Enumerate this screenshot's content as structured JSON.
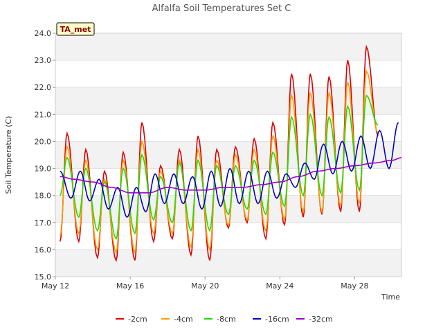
{
  "chart_data": {
    "type": "line",
    "title": "Alfalfa Soil Temperatures Set C",
    "xlabel": "Time",
    "ylabel": "Soil Temperature (C)",
    "badge": "TA_met",
    "ylim": [
      15.0,
      24.0
    ],
    "xlim": [
      "2024-05-12",
      "2024-05-30T12:00"
    ],
    "yticks": [
      "15.0",
      "16.0",
      "17.0",
      "18.0",
      "19.0",
      "20.0",
      "21.0",
      "22.0",
      "23.0",
      "24.0"
    ],
    "xticks": [
      {
        "label": "May 12",
        "date": "2024-05-12"
      },
      {
        "label": "May 16",
        "date": "2024-05-16"
      },
      {
        "label": "May 20",
        "date": "2024-05-20"
      },
      {
        "label": "May 24",
        "date": "2024-05-24"
      },
      {
        "label": "May 28",
        "date": "2024-05-28"
      }
    ],
    "grid": "horizontal alternating bands",
    "legend_position": "bottom",
    "series": [
      {
        "name": "-2cm",
        "color": "#dd0000",
        "x": [
          "2024-05-12T06:00",
          "2024-05-12T15:00",
          "2024-05-13T06:00",
          "2024-05-13T15:00",
          "2024-05-14T06:00",
          "2024-05-14T15:00",
          "2024-05-15T06:00",
          "2024-05-15T15:00",
          "2024-05-16T06:00",
          "2024-05-16T15:00",
          "2024-05-17T06:00",
          "2024-05-17T15:00",
          "2024-05-18T06:00",
          "2024-05-18T15:00",
          "2024-05-19T06:00",
          "2024-05-19T15:00",
          "2024-05-20T06:00",
          "2024-05-20T15:00",
          "2024-05-21T06:00",
          "2024-05-21T15:00",
          "2024-05-22T06:00",
          "2024-05-22T15:00",
          "2024-05-23T06:00",
          "2024-05-23T15:00",
          "2024-05-24T06:00",
          "2024-05-24T15:00",
          "2024-05-25T06:00",
          "2024-05-25T15:00",
          "2024-05-26T06:00",
          "2024-05-26T15:00",
          "2024-05-27T06:00",
          "2024-05-27T15:00",
          "2024-05-28T06:00",
          "2024-05-28T15:00",
          "2024-05-29T06:00",
          "2024-05-29T15:00",
          "2024-05-30T06:00"
        ],
        "y": [
          16.3,
          20.3,
          16.3,
          19.7,
          15.7,
          18.9,
          15.6,
          19.6,
          15.6,
          20.7,
          16.3,
          19.1,
          16.4,
          19.7,
          15.8,
          20.2,
          15.6,
          19.7,
          16.8,
          19.8,
          17.0,
          20.1,
          16.4,
          20.7,
          16.9,
          22.5,
          17.2,
          22.5,
          17.3,
          22.4,
          17.4,
          23.0,
          17.4,
          23.5,
          20.2,
          null,
          null
        ]
      },
      {
        "name": "-4cm",
        "color": "#ff9900",
        "x": [
          "2024-05-12T06:00",
          "2024-05-12T15:00",
          "2024-05-13T06:00",
          "2024-05-13T15:00",
          "2024-05-14T06:00",
          "2024-05-14T15:00",
          "2024-05-15T06:00",
          "2024-05-15T15:00",
          "2024-05-16T06:00",
          "2024-05-16T15:00",
          "2024-05-17T06:00",
          "2024-05-17T15:00",
          "2024-05-18T06:00",
          "2024-05-18T15:00",
          "2024-05-19T06:00",
          "2024-05-19T15:00",
          "2024-05-20T06:00",
          "2024-05-20T15:00",
          "2024-05-21T06:00",
          "2024-05-21T15:00",
          "2024-05-22T06:00",
          "2024-05-22T15:00",
          "2024-05-23T06:00",
          "2024-05-23T15:00",
          "2024-05-24T06:00",
          "2024-05-24T15:00",
          "2024-05-25T06:00",
          "2024-05-25T15:00",
          "2024-05-26T06:00",
          "2024-05-26T15:00",
          "2024-05-27T06:00",
          "2024-05-27T15:00",
          "2024-05-28T06:00",
          "2024-05-28T15:00",
          "2024-05-29T06:00",
          "2024-05-29T15:00",
          "2024-05-30T06:00"
        ],
        "y": [
          16.5,
          19.8,
          16.6,
          19.3,
          16.0,
          18.6,
          15.9,
          19.3,
          15.9,
          20.0,
          16.6,
          18.9,
          16.6,
          19.3,
          16.1,
          19.7,
          16.0,
          19.3,
          16.9,
          19.5,
          17.1,
          19.7,
          16.7,
          20.2,
          17.1,
          21.7,
          17.4,
          21.8,
          17.4,
          21.8,
          17.6,
          22.2,
          17.7,
          22.6,
          20.3,
          null,
          null
        ]
      },
      {
        "name": "-8cm",
        "color": "#22dd00",
        "x": [
          "2024-05-12T06:00",
          "2024-05-12T15:00",
          "2024-05-13T06:00",
          "2024-05-13T15:00",
          "2024-05-14T06:00",
          "2024-05-14T15:00",
          "2024-05-15T06:00",
          "2024-05-15T15:00",
          "2024-05-16T06:00",
          "2024-05-16T15:00",
          "2024-05-17T06:00",
          "2024-05-17T15:00",
          "2024-05-18T06:00",
          "2024-05-18T15:00",
          "2024-05-19T06:00",
          "2024-05-19T15:00",
          "2024-05-20T06:00",
          "2024-05-20T15:00",
          "2024-05-21T06:00",
          "2024-05-21T15:00",
          "2024-05-22T06:00",
          "2024-05-22T15:00",
          "2024-05-23T06:00",
          "2024-05-23T15:00",
          "2024-05-24T06:00",
          "2024-05-24T15:00",
          "2024-05-25T06:00",
          "2024-05-25T15:00",
          "2024-05-26T06:00",
          "2024-05-26T15:00",
          "2024-05-27T06:00",
          "2024-05-27T15:00",
          "2024-05-28T06:00",
          "2024-05-28T15:00",
          "2024-05-29T06:00",
          "2024-05-29T15:00",
          "2024-05-30T06:00"
        ],
        "y": [
          18.0,
          19.4,
          17.2,
          19.0,
          16.7,
          18.5,
          16.4,
          19.0,
          16.6,
          19.5,
          17.1,
          18.7,
          17.0,
          19.2,
          16.7,
          19.3,
          16.7,
          19.1,
          17.3,
          19.1,
          17.5,
          19.3,
          17.3,
          19.6,
          17.6,
          20.9,
          18.0,
          21.0,
          18.0,
          20.9,
          18.1,
          21.3,
          18.2,
          21.7,
          20.6,
          null,
          null
        ]
      },
      {
        "name": "-16cm",
        "color": "#0000cc",
        "x": [
          "2024-05-12T06:00",
          "2024-05-12T20:00",
          "2024-05-13T08:00",
          "2024-05-13T20:00",
          "2024-05-14T08:00",
          "2024-05-14T20:00",
          "2024-05-15T08:00",
          "2024-05-15T20:00",
          "2024-05-16T08:00",
          "2024-05-16T20:00",
          "2024-05-17T08:00",
          "2024-05-17T20:00",
          "2024-05-18T08:00",
          "2024-05-18T20:00",
          "2024-05-19T08:00",
          "2024-05-19T20:00",
          "2024-05-20T08:00",
          "2024-05-20T20:00",
          "2024-05-21T08:00",
          "2024-05-21T20:00",
          "2024-05-22T08:00",
          "2024-05-22T20:00",
          "2024-05-23T08:00",
          "2024-05-23T20:00",
          "2024-05-24T08:00",
          "2024-05-24T20:00",
          "2024-05-25T08:00",
          "2024-05-25T20:00",
          "2024-05-26T08:00",
          "2024-05-26T20:00",
          "2024-05-27T08:00",
          "2024-05-27T20:00",
          "2024-05-28T08:00",
          "2024-05-28T20:00",
          "2024-05-29T08:00",
          "2024-05-29T20:00",
          "2024-05-30T08:00"
        ],
        "y": [
          18.9,
          17.9,
          18.9,
          17.8,
          18.6,
          17.5,
          18.3,
          17.2,
          18.3,
          17.4,
          18.8,
          17.7,
          18.8,
          17.7,
          18.7,
          17.5,
          18.9,
          17.6,
          19.0,
          17.7,
          18.9,
          17.7,
          18.9,
          17.9,
          18.8,
          18.3,
          19.2,
          18.6,
          19.9,
          18.8,
          20.0,
          18.9,
          20.2,
          19.0,
          20.4,
          19.0,
          20.7
        ]
      },
      {
        "name": "-32cm",
        "color": "#9900cc",
        "x": [
          "2024-05-12T06:00",
          "2024-05-13T00:00",
          "2024-05-14T00:00",
          "2024-05-15T00:00",
          "2024-05-16T00:00",
          "2024-05-17T00:00",
          "2024-05-18T00:00",
          "2024-05-19T00:00",
          "2024-05-20T00:00",
          "2024-05-21T00:00",
          "2024-05-22T00:00",
          "2024-05-23T00:00",
          "2024-05-24T00:00",
          "2024-05-25T00:00",
          "2024-05-26T00:00",
          "2024-05-27T00:00",
          "2024-05-28T00:00",
          "2024-05-29T00:00",
          "2024-05-30T00:00",
          "2024-05-30T12:00"
        ],
        "y": [
          18.7,
          18.6,
          18.5,
          18.3,
          18.1,
          18.1,
          18.3,
          18.2,
          18.2,
          18.3,
          18.3,
          18.4,
          18.5,
          18.7,
          18.9,
          19.0,
          19.1,
          19.2,
          19.3,
          19.4
        ]
      }
    ]
  }
}
